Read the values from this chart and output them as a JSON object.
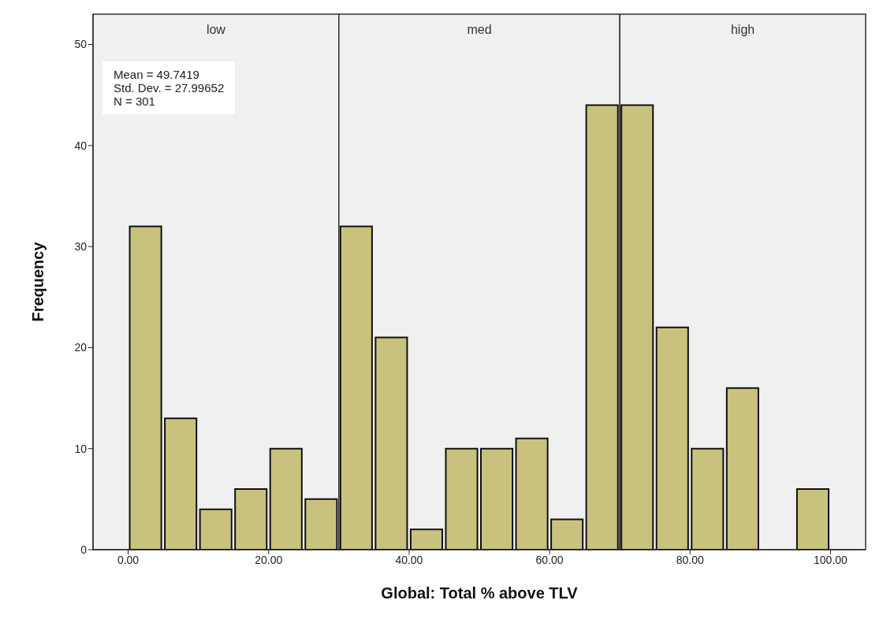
{
  "chart_data": {
    "type": "histogram",
    "xlabel": "Global: Total % above TLV",
    "ylabel": "Frequency",
    "bins": [
      0,
      5,
      10,
      15,
      20,
      25,
      30,
      35,
      40,
      45,
      50,
      55,
      60,
      65,
      70,
      75,
      80,
      85,
      90,
      95,
      100
    ],
    "values": [
      32,
      13,
      4,
      6,
      10,
      5,
      32,
      21,
      2,
      10,
      10,
      11,
      3,
      44,
      44,
      22,
      10,
      16,
      0,
      6
    ],
    "color": "#c9c27e",
    "xlim": [
      -5,
      105
    ],
    "xticks": [
      {
        "value": 0,
        "label": "0.00"
      },
      {
        "value": 20,
        "label": "20.00"
      },
      {
        "value": 40,
        "label": "40.00"
      },
      {
        "value": 60,
        "label": "60.00"
      },
      {
        "value": 80,
        "label": "80.00"
      },
      {
        "value": 100,
        "label": "100.00"
      }
    ],
    "ylim": [
      0,
      53
    ],
    "yticks": [
      0,
      10,
      20,
      30,
      40,
      50
    ],
    "bands": [
      {
        "axis": "x",
        "from": -5,
        "to": 30,
        "label": "low",
        "color": "#f0f0f0"
      },
      {
        "axis": "x",
        "from": 30,
        "to": 70,
        "label": "med",
        "color": "#f0f0f0"
      },
      {
        "axis": "x",
        "from": 70,
        "to": 105,
        "label": "high",
        "color": "#f0f0f0"
      }
    ],
    "annotations": [
      "Mean = 49.7419",
      "Std. Dev. = 27.99652",
      "N = 301"
    ],
    "grid": false,
    "legend": false
  }
}
